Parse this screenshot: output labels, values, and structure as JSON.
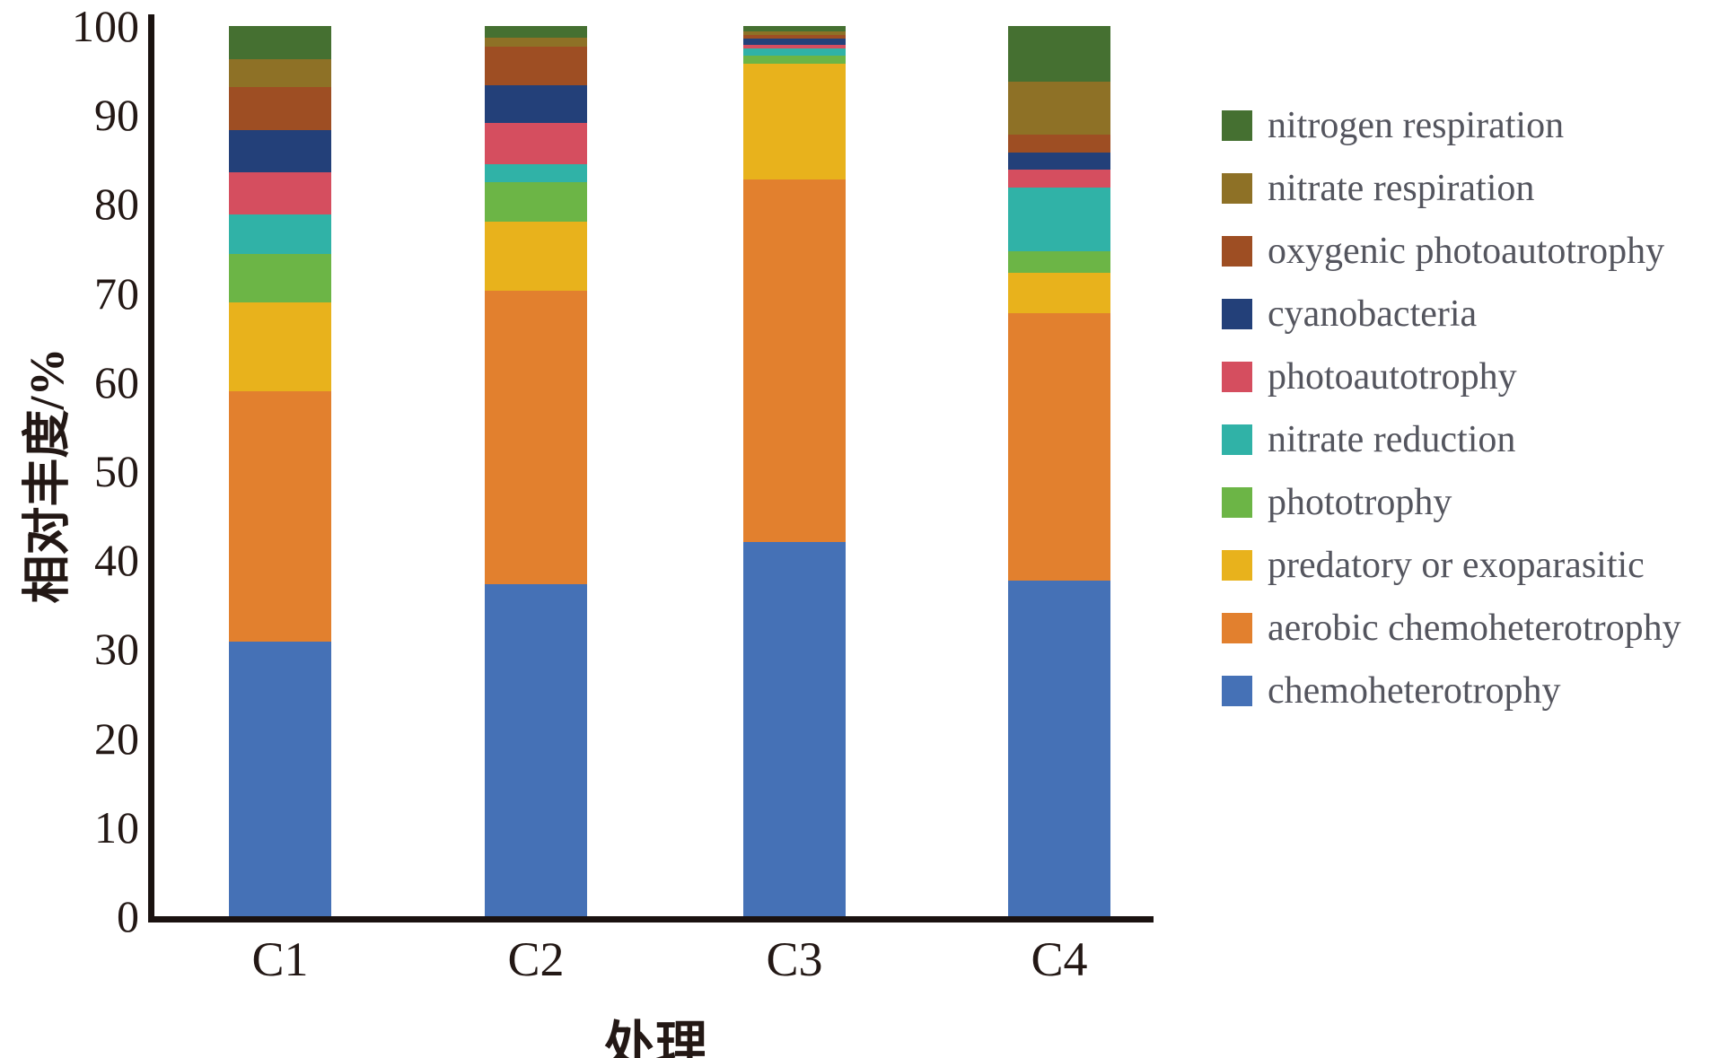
{
  "figure": {
    "background": "#ffffff",
    "axis_color": "#1a1210",
    "tick_label_color": "#231815",
    "legend_text_color": "#54555e"
  },
  "chart_data": {
    "type": "bar",
    "stacked": true,
    "title": "",
    "xlabel": "处理",
    "ylabel": "相对丰度/%",
    "ylim": [
      0,
      100
    ],
    "yticks": [
      0,
      10,
      20,
      30,
      40,
      50,
      60,
      70,
      80,
      90,
      100
    ],
    "grid": false,
    "legend_position": "right",
    "categories": [
      "C1",
      "C2",
      "C3",
      "C4"
    ],
    "series": [
      {
        "name": "nitrogen respiration",
        "color": "#457031",
        "values": [
          3.7,
          1.3,
          0.6,
          6.2
        ]
      },
      {
        "name": "nitrate respiration",
        "color": "#8E7126",
        "values": [
          3.2,
          1.0,
          0.4,
          6.0
        ]
      },
      {
        "name": "oxygenic photoautotrophy",
        "color": "#9E4E23",
        "values": [
          4.8,
          4.4,
          0.45,
          2.0
        ]
      },
      {
        "name": "cyanobacteria",
        "color": "#234079",
        "values": [
          4.7,
          4.2,
          0.7,
          1.9
        ]
      },
      {
        "name": "photoautotrophy",
        "color": "#D54E5F",
        "values": [
          4.8,
          4.6,
          0.35,
          2.0
        ]
      },
      {
        "name": "nitrate reduction",
        "color": "#30B2A7",
        "values": [
          4.4,
          2.0,
          0.8,
          7.2
        ]
      },
      {
        "name": "phototrophy",
        "color": "#6CB546",
        "values": [
          5.4,
          4.5,
          0.9,
          2.4
        ]
      },
      {
        "name": "predatory or exoparasitic",
        "color": "#E8B21C",
        "values": [
          10.0,
          7.7,
          13.0,
          4.6
        ]
      },
      {
        "name": "aerobic chemoheterotrophy",
        "color": "#E2802E",
        "values": [
          28.2,
          33.0,
          40.8,
          30.0
        ]
      },
      {
        "name": "chemoheterotrophy",
        "color": "#4571B6",
        "values": [
          30.8,
          37.3,
          42.0,
          37.7
        ]
      }
    ]
  }
}
